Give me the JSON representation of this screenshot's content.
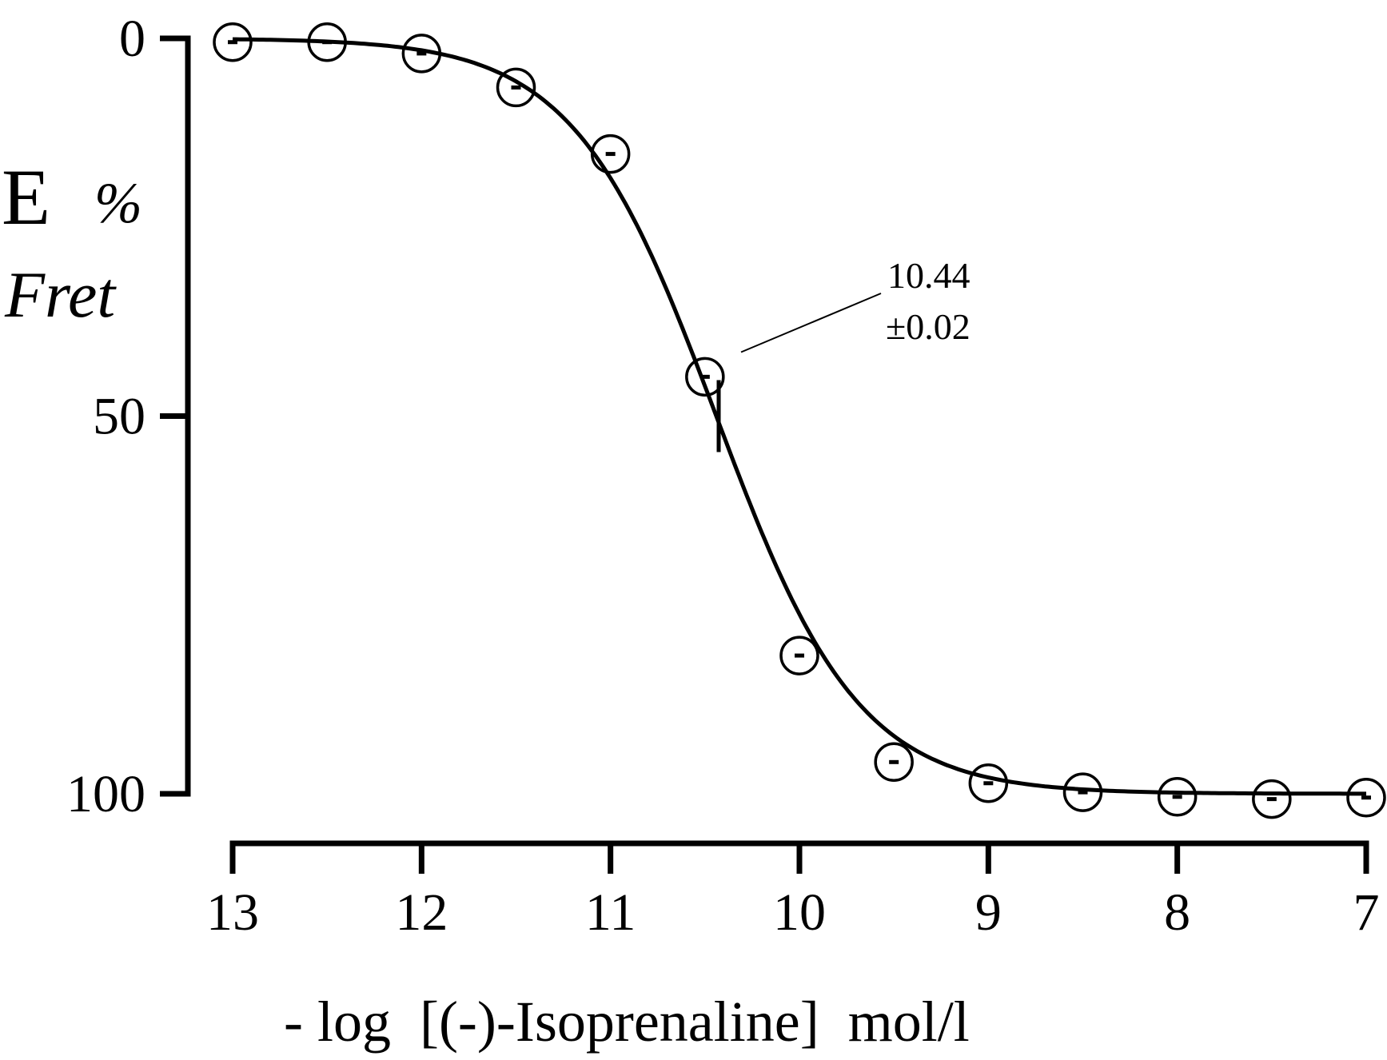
{
  "chart_data": {
    "type": "line",
    "title": "",
    "ylabel": "E",
    "ylabel_unit": "%",
    "ylabel_sub": "Fret",
    "xlabel": "- log  [(-)-Isoprenaline]  mol/l",
    "x_ticks": [
      "13",
      "12",
      "11",
      "10",
      "9",
      "8",
      "7"
    ],
    "y_ticks": [
      "0",
      "50",
      "100"
    ],
    "xlim": [
      13,
      7
    ],
    "ylim": [
      0,
      100
    ],
    "y_inverted": true,
    "grid": false,
    "series": [
      {
        "marker": "open-circle",
        "x": [
          13.0,
          12.5,
          12.0,
          11.5,
          11.0,
          10.5,
          10.0,
          9.5,
          9.0,
          8.5,
          8.0,
          7.5,
          7.0
        ],
        "y": [
          0.5,
          0.5,
          2.0,
          6.5,
          15.3,
          44.8,
          81.7,
          95.8,
          98.6,
          99.8,
          100.4,
          100.7,
          100.5
        ]
      }
    ],
    "fit": {
      "type": "sigmoid",
      "ec50": 10.44,
      "bottom": 0,
      "top": 100
    },
    "annotation": {
      "value": "10.44",
      "error": "±0.02"
    }
  }
}
